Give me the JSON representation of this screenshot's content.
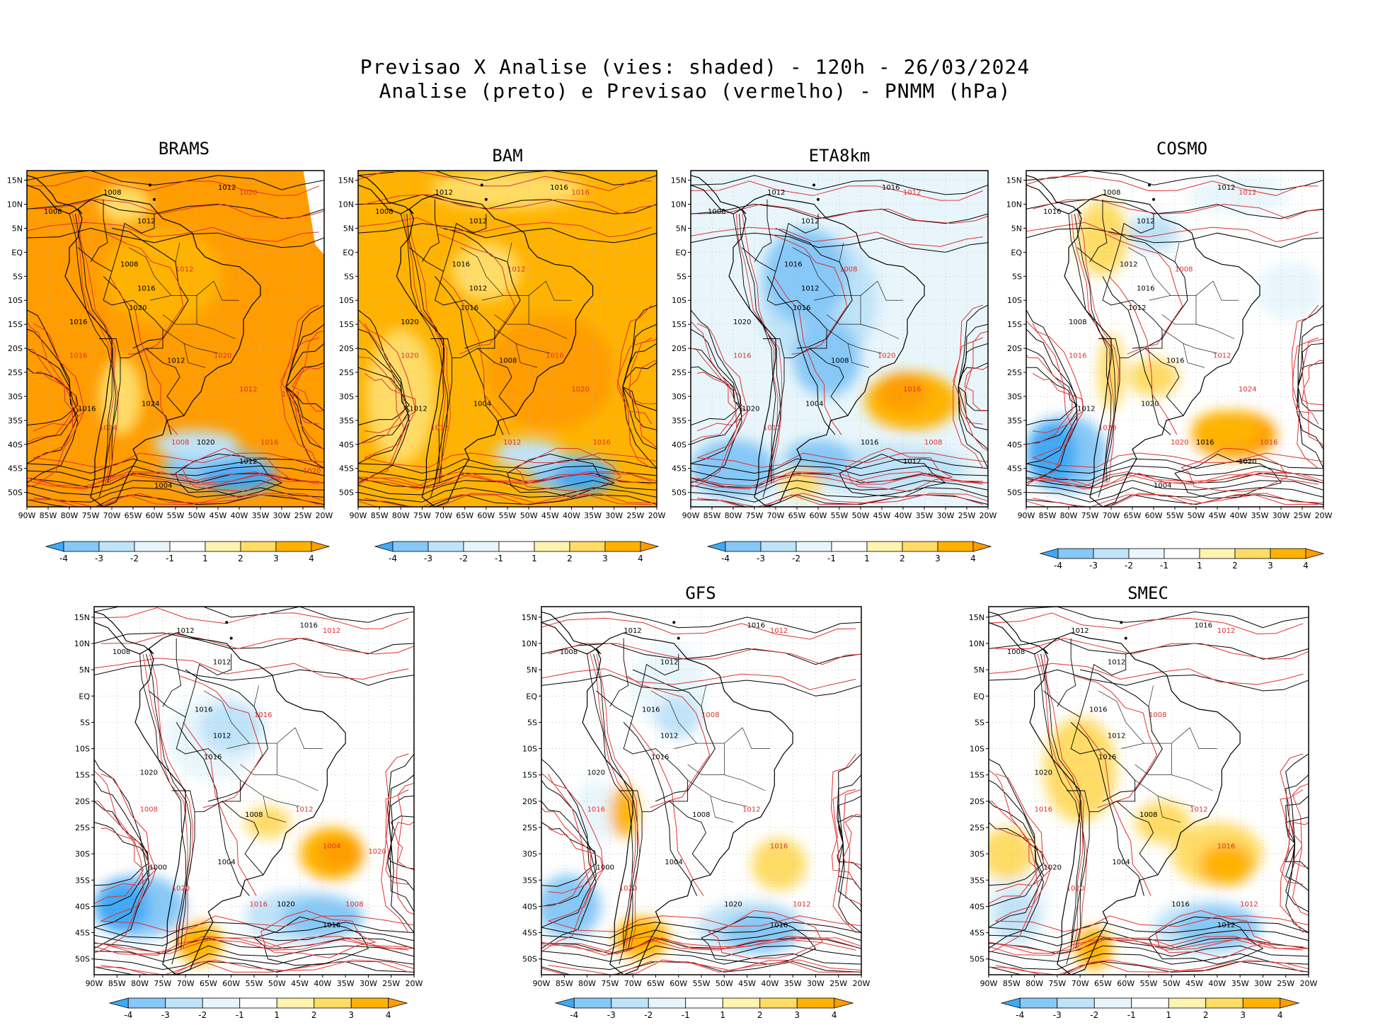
{
  "header": {
    "title_line1": "Previsao X Analise (vies: shaded) - 120h - 26/03/2024",
    "title_line2": "Analise (preto) e Previsao (vermelho) - PNMM (hPa)"
  },
  "axis": {
    "lon_labels": [
      "90W",
      "85W",
      "80W",
      "75W",
      "70W",
      "65W",
      "60W",
      "55W",
      "50W",
      "45W",
      "40W",
      "35W",
      "30W",
      "25W",
      "20W"
    ],
    "lat_labels": [
      "15N",
      "10N",
      "5N",
      "EQ",
      "5S",
      "10S",
      "15S",
      "20S",
      "25S",
      "30S",
      "35S",
      "40S",
      "45S",
      "50S"
    ]
  },
  "colorbar": {
    "labels": [
      "-4",
      "-3",
      "-2",
      "-1",
      "1",
      "2",
      "3",
      "4"
    ],
    "colors": [
      "#3fa9f5",
      "#86c8f7",
      "#bfe3f8",
      "#e8f6fb",
      "#ffffff",
      "#fff3b0",
      "#ffdc66",
      "#ffb300",
      "#ff9c00"
    ]
  },
  "colors": {
    "analysis_line": "#000000",
    "forecast_line": "#e03030",
    "grid": "#bbbbbb"
  },
  "panels": [
    {
      "id": "brams",
      "title": "BRAMS",
      "bias_pattern": "warm",
      "black_labels": [
        "1008",
        "1012",
        "1008",
        "1012",
        "1008",
        "1016",
        "1016",
        "1020",
        "1012",
        "1024",
        "1016",
        "1020",
        "1012",
        "1004"
      ],
      "red_labels": [
        "1020",
        "1012",
        "1016",
        "1020",
        "1024",
        "1012",
        "1016",
        "1008",
        "1012",
        "1020"
      ]
    },
    {
      "id": "bam",
      "title": "BAM",
      "bias_pattern": "warm-south-cold",
      "black_labels": [
        "1012",
        "1016",
        "1008",
        "1012",
        "1016",
        "1012",
        "1020",
        "1016",
        "1008",
        "1004",
        "1012"
      ],
      "red_labels": [
        "1016",
        "1012",
        "1020",
        "1016",
        "1012",
        "1020",
        "1016",
        "1012"
      ]
    },
    {
      "id": "eta8km",
      "title": "ETA8km",
      "bias_pattern": "cold",
      "black_labels": [
        "1012",
        "1016",
        "1008",
        "1012",
        "1016",
        "1012",
        "1020",
        "1016",
        "1008",
        "1004",
        "1020",
        "1016",
        "1012"
      ],
      "red_labels": [
        "1012",
        "1008",
        "1016",
        "1020",
        "1012",
        "1016",
        "1008"
      ]
    },
    {
      "id": "cosmo",
      "title": "COSMO",
      "bias_pattern": "mixed-warm",
      "black_labels": [
        "1008",
        "1012",
        "1016",
        "1012",
        "1012",
        "1016",
        "1008",
        "1012",
        "1016",
        "1020",
        "1012",
        "1016",
        "1020",
        "1004"
      ],
      "red_labels": [
        "1012",
        "1008",
        "1016",
        "1012",
        "1020",
        "1024",
        "1016",
        "1020"
      ]
    },
    {
      "id": "panel5",
      "title": "",
      "bias_pattern": "mixed-cold",
      "black_labels": [
        "1012",
        "1016",
        "1008",
        "1012",
        "1016",
        "1012",
        "1020",
        "1016",
        "1008",
        "1004",
        "1000",
        "1020",
        "1016"
      ],
      "red_labels": [
        "1012",
        "1016",
        "1008",
        "1012",
        "1020",
        "1004",
        "1008",
        "1016",
        "1020"
      ]
    },
    {
      "id": "gfs",
      "title": "GFS",
      "bias_pattern": "cold-light",
      "black_labels": [
        "1012",
        "1016",
        "1008",
        "1012",
        "1016",
        "1012",
        "1020",
        "1016",
        "1008",
        "1004",
        "1000",
        "1020",
        "1016"
      ],
      "red_labels": [
        "1012",
        "1008",
        "1016",
        "1012",
        "1020",
        "1016",
        "1012"
      ]
    },
    {
      "id": "smec",
      "title": "SMEC",
      "bias_pattern": "mixed-south-cold",
      "black_labels": [
        "1012",
        "1016",
        "1008",
        "1012",
        "1016",
        "1012",
        "1020",
        "1016",
        "1008",
        "1004",
        "1020",
        "1016",
        "1012"
      ],
      "red_labels": [
        "1012",
        "1008",
        "1016",
        "1012",
        "1020",
        "1016",
        "1012"
      ]
    }
  ]
}
